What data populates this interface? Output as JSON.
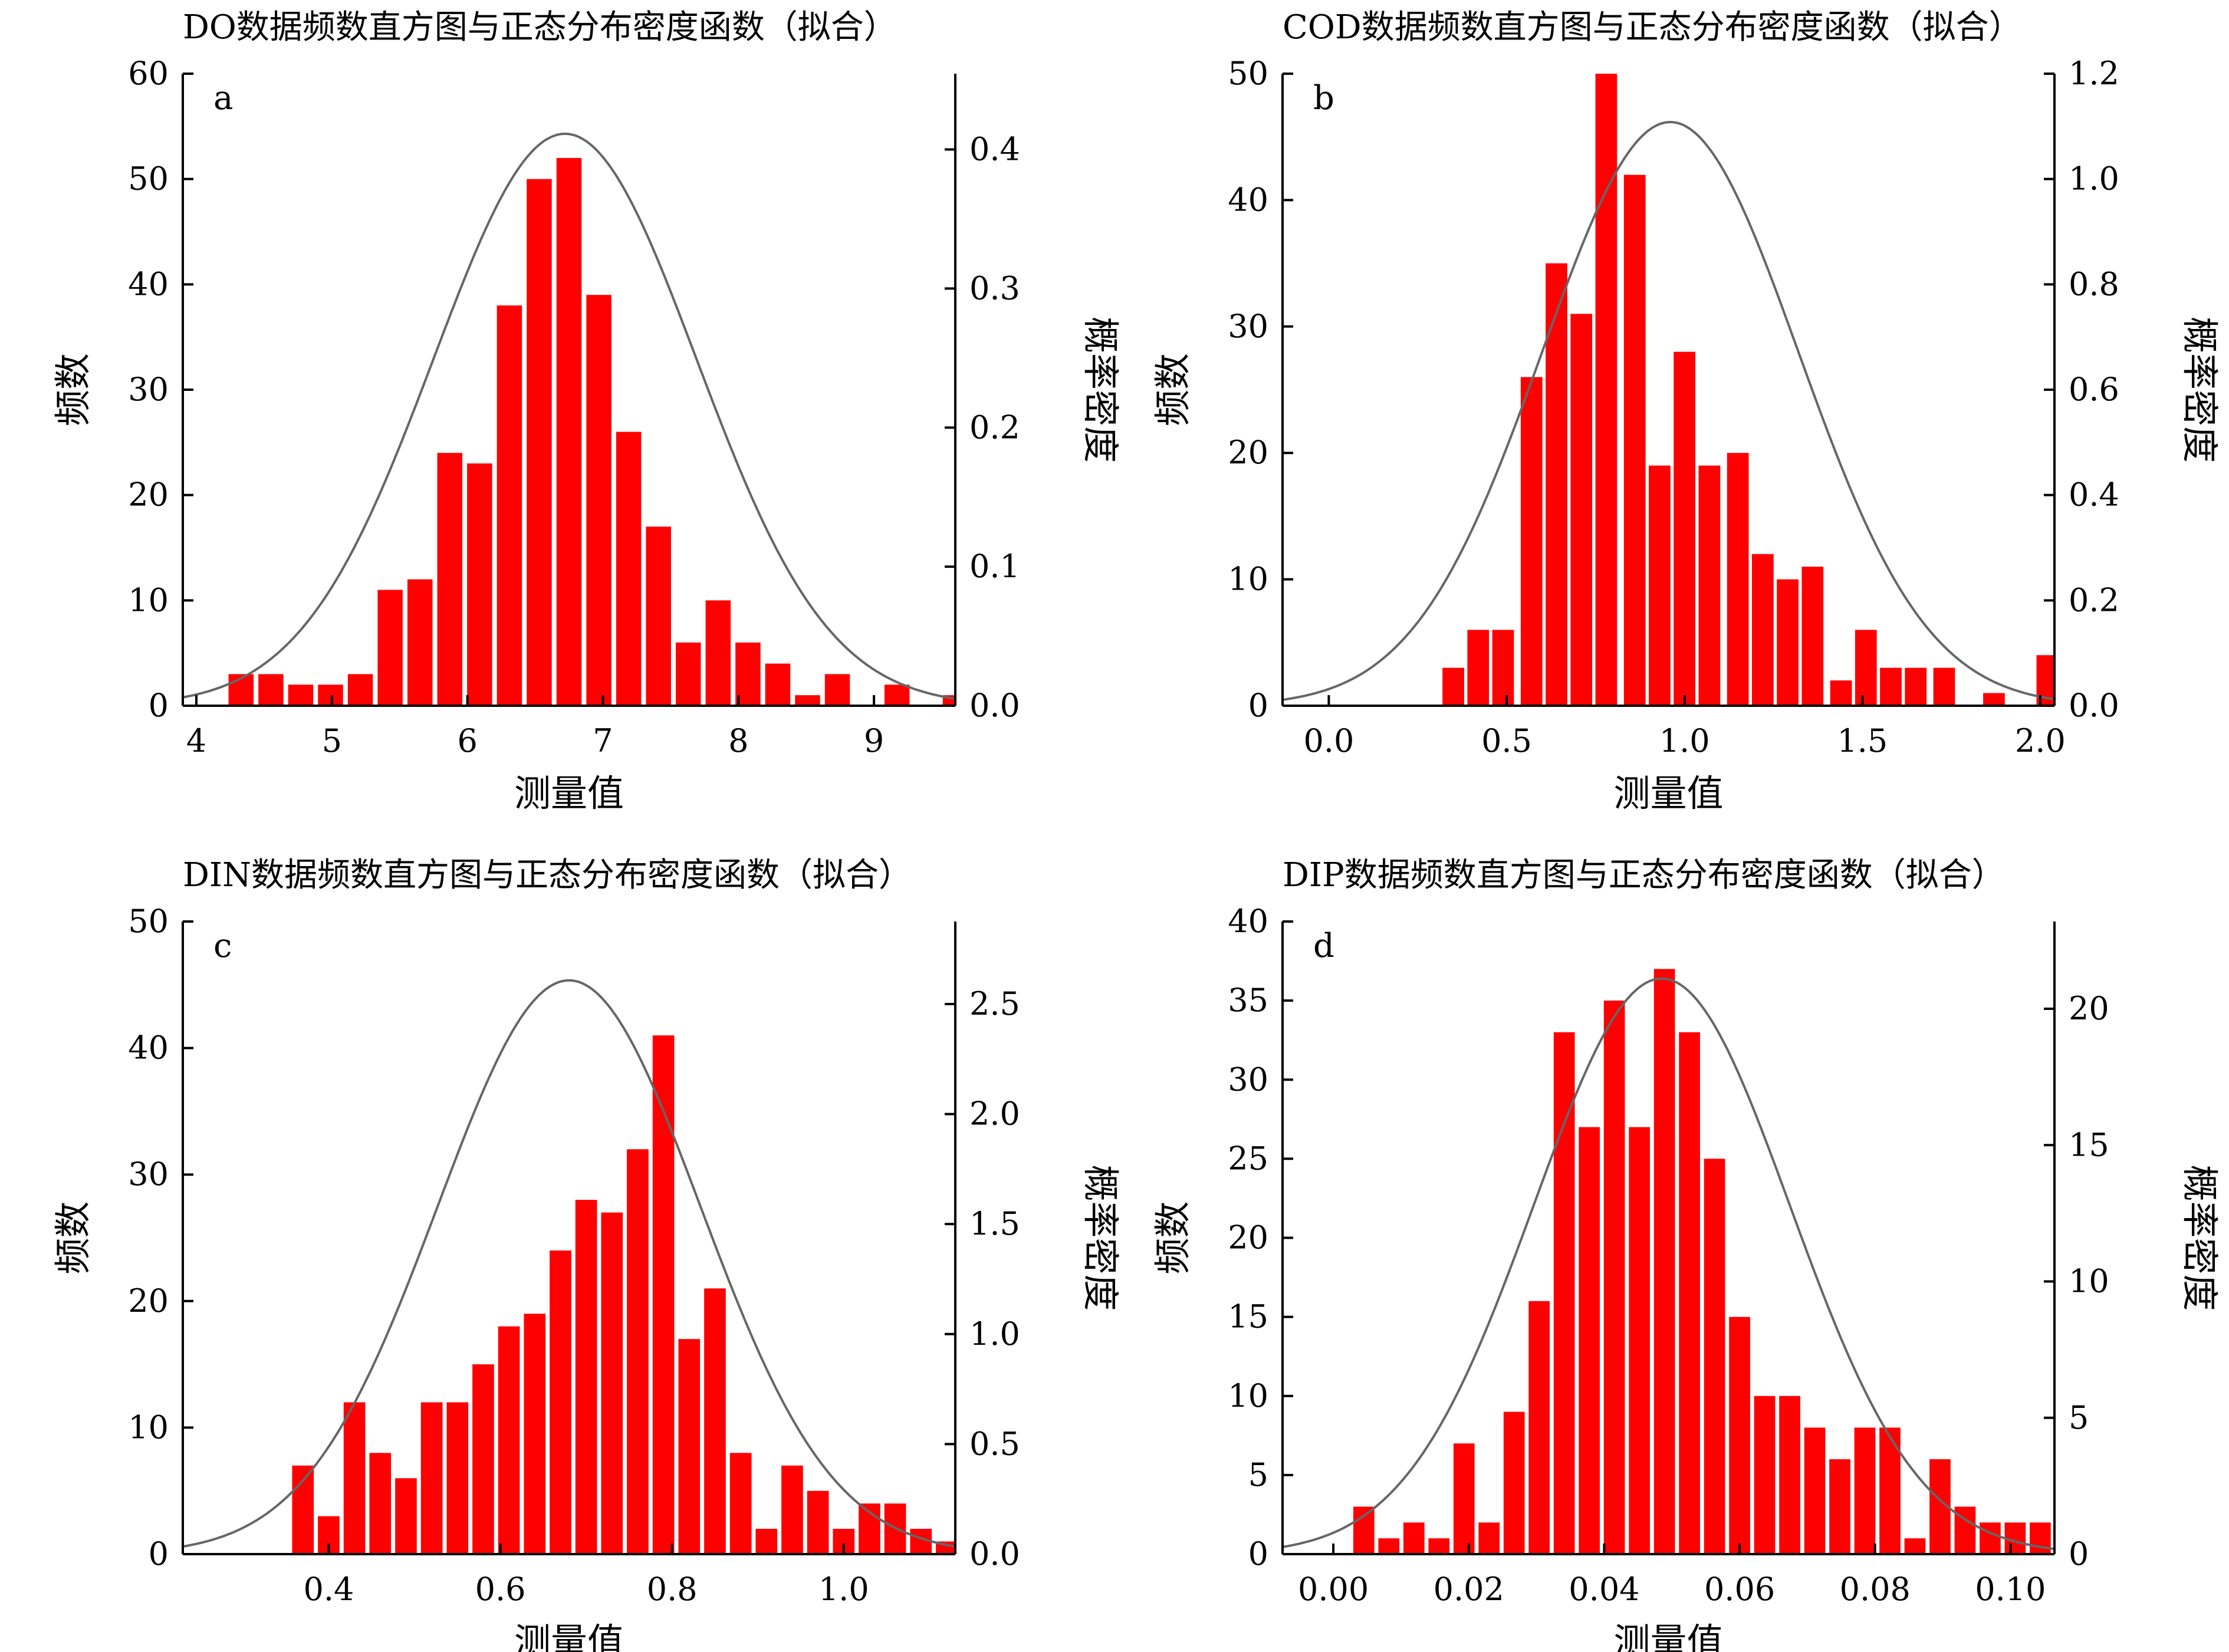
{
  "chart_data": [
    {
      "type": "bar",
      "panel": "a",
      "title": "DO数据频数直方图与正态分布密度函数（拟合）",
      "xlabel": "测量值",
      "ylabel": "频数",
      "y2label": "概率密度",
      "xlim": [
        3.9,
        9.6
      ],
      "ylim": [
        0,
        60
      ],
      "y2lim": [
        0,
        0.4545
      ],
      "xticks": [
        4,
        5,
        6,
        7,
        8,
        9
      ],
      "xtick_labels": [
        "4",
        "5",
        "6",
        "7",
        "8",
        "9"
      ],
      "yticks": [
        0,
        10,
        20,
        30,
        40,
        50,
        60
      ],
      "ytick_labels": [
        "0",
        "10",
        "20",
        "30",
        "40",
        "50",
        "60"
      ],
      "y2ticks": [
        0,
        0.1,
        0.2,
        0.3,
        0.4
      ],
      "y2tick_labels": [
        "0.0",
        "0.1",
        "0.2",
        "0.3",
        "0.4"
      ],
      "bin_width": 0.22,
      "bins": [
        4.33,
        4.55,
        4.77,
        4.99,
        5.21,
        5.43,
        5.65,
        5.87,
        6.09,
        6.31,
        6.53,
        6.75,
        6.97,
        7.19,
        7.41,
        7.63,
        7.85,
        8.07,
        8.29,
        8.51,
        8.73,
        8.95,
        9.17,
        9.39,
        9.6
      ],
      "values": [
        3,
        3,
        2,
        2,
        3,
        11,
        12,
        24,
        23,
        38,
        50,
        52,
        39,
        26,
        17,
        6,
        10,
        6,
        4,
        1,
        3,
        0,
        2,
        0,
        1
      ],
      "fit": {
        "mean": 6.72,
        "sd": 0.97
      },
      "grid": false,
      "legend": "none"
    },
    {
      "type": "bar",
      "panel": "b",
      "title": "COD数据频数直方图与正态分布密度函数（拟合）",
      "xlabel": "测量值",
      "ylabel": "频数",
      "y2label": "概率密度",
      "xlim": [
        -0.13,
        2.04
      ],
      "ylim": [
        0,
        50
      ],
      "y2lim": [
        0,
        1.2
      ],
      "xticks": [
        0,
        0.5,
        1.0,
        1.5,
        2.0
      ],
      "xtick_labels": [
        "0.0",
        "0.5",
        "1.0",
        "1.5",
        "2.0"
      ],
      "yticks": [
        0,
        10,
        20,
        30,
        40,
        50
      ],
      "ytick_labels": [
        "0",
        "10",
        "20",
        "30",
        "40",
        "50"
      ],
      "y2ticks": [
        0,
        0.2,
        0.4,
        0.6,
        0.8,
        1.0,
        1.2
      ],
      "y2tick_labels": [
        "0.0",
        "0.2",
        "0.4",
        "0.6",
        "0.8",
        "1.0",
        "1.2"
      ],
      "bin_width": 0.0725,
      "bins": [
        0.35,
        0.42,
        0.49,
        0.57,
        0.64,
        0.71,
        0.78,
        0.86,
        0.93,
        1.0,
        1.07,
        1.15,
        1.22,
        1.29,
        1.36,
        1.44,
        1.51,
        1.58,
        1.65,
        1.73,
        1.87,
        2.02
      ],
      "values": [
        3,
        6,
        6,
        26,
        35,
        31,
        50,
        42,
        19,
        28,
        19,
        20,
        12,
        10,
        11,
        2,
        6,
        3,
        3,
        3,
        1,
        4
      ],
      "fit": {
        "mean": 0.96,
        "sd": 0.36
      },
      "grid": false,
      "legend": "none"
    },
    {
      "type": "bar",
      "panel": "c",
      "title": "DIN数据频数直方图与正态分布密度函数（拟合）",
      "xlabel": "测量值",
      "ylabel": "频数",
      "y2label": "概率密度",
      "xlim": [
        0.23,
        1.13
      ],
      "ylim": [
        0,
        50
      ],
      "y2lim": [
        0,
        2.875
      ],
      "xticks": [
        0.4,
        0.6,
        0.8,
        1.0
      ],
      "xtick_labels": [
        "0.4",
        "0.6",
        "0.8",
        "1.0"
      ],
      "yticks": [
        0,
        10,
        20,
        30,
        40,
        50
      ],
      "ytick_labels": [
        "0",
        "10",
        "20",
        "30",
        "40",
        "50"
      ],
      "y2ticks": [
        0,
        0.5,
        1.0,
        1.5,
        2.0,
        2.5
      ],
      "y2tick_labels": [
        "0.0",
        "0.5",
        "1.0",
        "1.5",
        "2.0",
        "2.5"
      ],
      "bin_width": 0.03,
      "bins": [
        0.37,
        0.4,
        0.43,
        0.46,
        0.49,
        0.52,
        0.55,
        0.58,
        0.61,
        0.64,
        0.67,
        0.7,
        0.73,
        0.76,
        0.79,
        0.82,
        0.85,
        0.88,
        0.91,
        0.94,
        0.97,
        1.0,
        1.03,
        1.06,
        1.09,
        1.12
      ],
      "values": [
        7,
        3,
        12,
        8,
        6,
        12,
        12,
        15,
        18,
        19,
        24,
        28,
        27,
        32,
        41,
        17,
        21,
        8,
        2,
        7,
        5,
        2,
        4,
        4,
        2,
        1
      ],
      "fit": {
        "mean": 0.68,
        "sd": 0.153
      },
      "grid": false,
      "legend": "none"
    },
    {
      "type": "bar",
      "panel": "d",
      "title": "DIP数据频数直方图与正态分布密度函数（拟合）",
      "xlabel": "测量值",
      "ylabel": "频数",
      "y2label": "概率密度",
      "xlim": [
        -0.0075,
        0.1065
      ],
      "ylim": [
        0,
        40
      ],
      "y2lim": [
        0,
        23.2
      ],
      "xticks": [
        0,
        0.02,
        0.04,
        0.06,
        0.08,
        0.1
      ],
      "xtick_labels": [
        "0.00",
        "0.02",
        "0.04",
        "0.06",
        "0.08",
        "0.10"
      ],
      "yticks": [
        0,
        5,
        10,
        15,
        20,
        25,
        30,
        35,
        40
      ],
      "ytick_labels": [
        "0",
        "5",
        "10",
        "15",
        "20",
        "25",
        "30",
        "35",
        "40"
      ],
      "y2ticks": [
        0,
        5,
        10,
        15,
        20
      ],
      "y2tick_labels": [
        "0",
        "5",
        "10",
        "15",
        "20"
      ],
      "bin_width": 0.0037,
      "bins": [
        0.0045,
        0.0082,
        0.0119,
        0.0156,
        0.0193,
        0.023,
        0.0267,
        0.0304,
        0.0341,
        0.0378,
        0.0415,
        0.0452,
        0.0489,
        0.0526,
        0.0563,
        0.06,
        0.0637,
        0.0674,
        0.0711,
        0.0748,
        0.0785,
        0.0822,
        0.0859,
        0.0896,
        0.0933,
        0.097,
        0.1007,
        0.1044
      ],
      "values": [
        3,
        1,
        2,
        1,
        7,
        2,
        9,
        16,
        33,
        27,
        35,
        27,
        37,
        33,
        25,
        15,
        10,
        10,
        8,
        6,
        8,
        8,
        1,
        6,
        3,
        2,
        2,
        2
      ],
      "fit": {
        "mean": 0.0485,
        "sd": 0.0189
      },
      "grid": false,
      "legend": "none"
    }
  ],
  "colors": {
    "bar": "#ff0000",
    "curve": "#666666",
    "axis": "#000000"
  }
}
